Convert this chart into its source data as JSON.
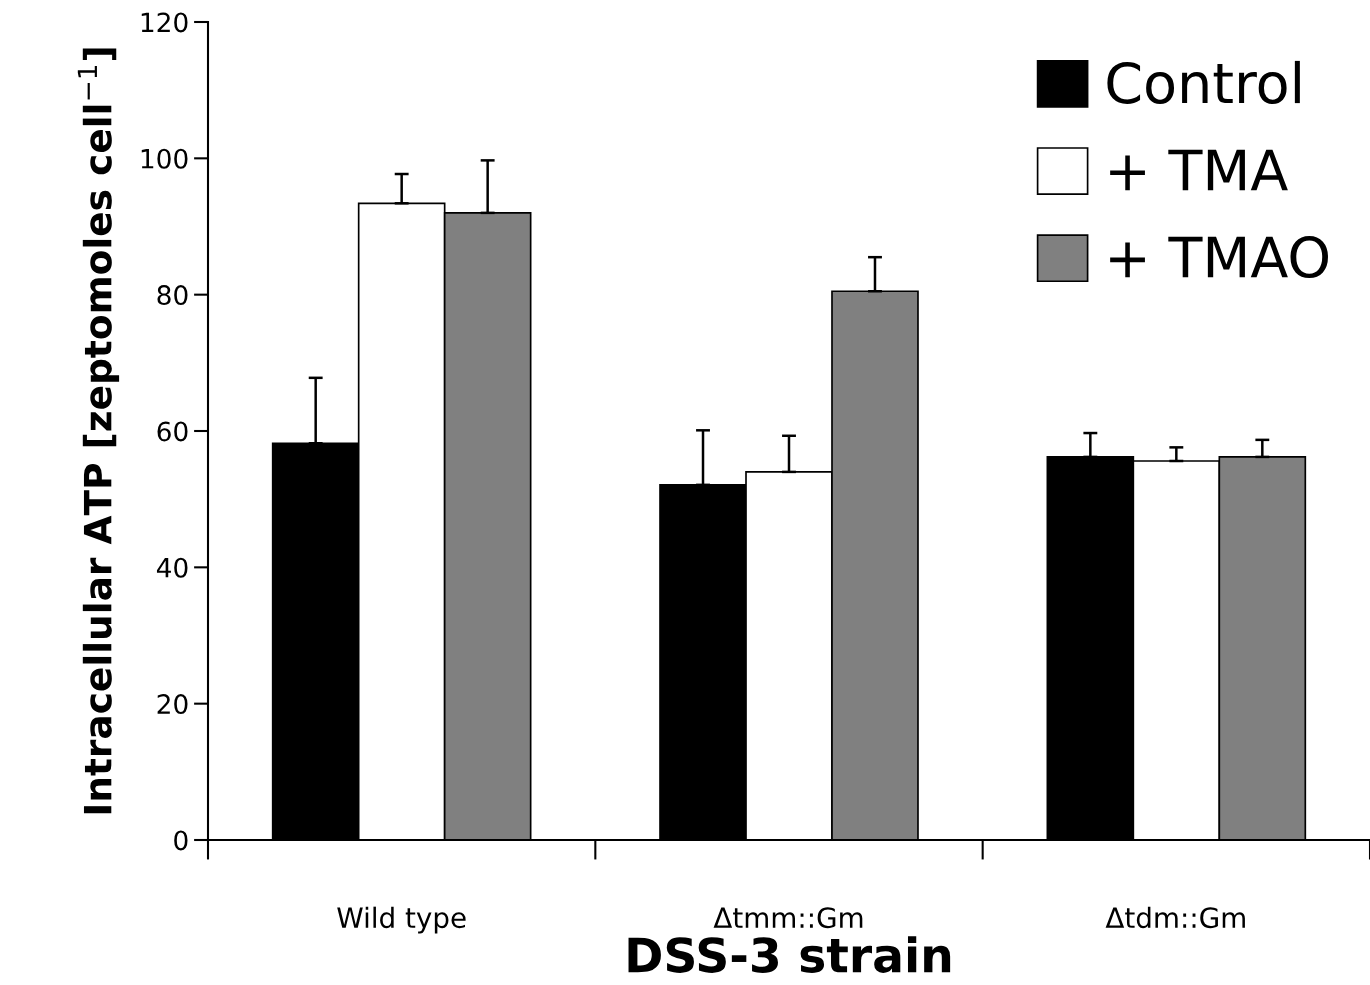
{
  "chart_data": {
    "type": "bar",
    "xlabel": "DSS-3 strain",
    "ylabel": "Intracellular ATP [zeptomoles cell$^{−1}$]",
    "categories": [
      "Wild type",
      "Δtmm::Gm",
      "Δtdm::Gm"
    ],
    "series": [
      {
        "name": "Control",
        "color": "#000000",
        "values": [
          58.2,
          52.1,
          56.2
        ],
        "errors": [
          [
            58.2,
            67.8
          ],
          [
            52.1,
            60.1
          ],
          [
            56.2,
            59.7
          ]
        ]
      },
      {
        "name": "+ TMA",
        "color": "#ffffff",
        "values": [
          93.4,
          54.0,
          55.6
        ],
        "errors": [
          [
            93.4,
            97.7
          ],
          [
            54.0,
            59.3
          ],
          [
            55.6,
            57.6
          ]
        ]
      },
      {
        "name": "+ TMAO",
        "color": "#808080",
        "values": [
          92.0,
          80.5,
          56.2
        ],
        "errors": [
          [
            92.0,
            99.7
          ],
          [
            80.5,
            85.5
          ],
          [
            56.2,
            58.7
          ]
        ]
      }
    ],
    "ylim": [
      0,
      120
    ],
    "yticks": [
      0,
      20,
      40,
      60,
      80,
      100,
      120
    ],
    "legend": "top right",
    "grid": false
  }
}
